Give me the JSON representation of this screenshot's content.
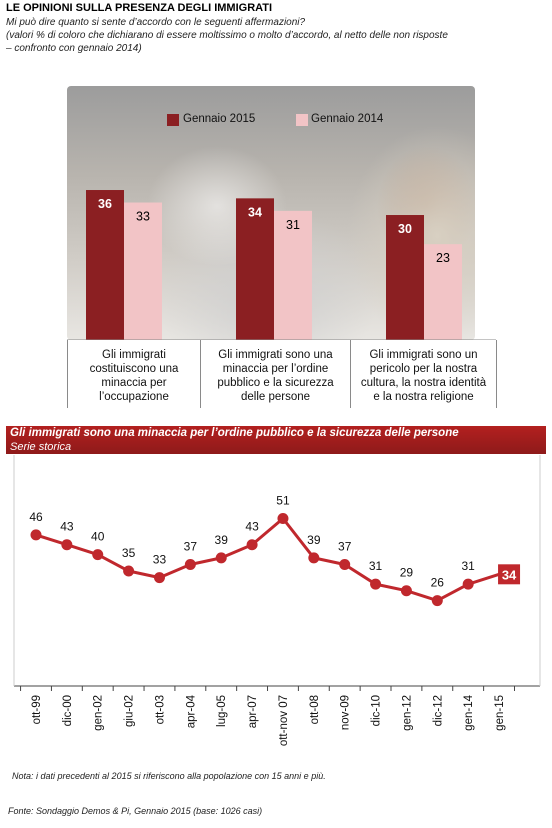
{
  "header": {
    "title": "LE OPINIONI SULLA PRESENZA DEGLI IMMIGRATI",
    "subtitle_line1": "Mi può dire quanto si sente d’accordo con le seguenti affermazioni?",
    "subtitle_line2": "(valori % di coloro che dichiarano di essere moltissimo o molto d’accordo, al netto delle non risposte",
    "subtitle_line3": "– confronto con gennaio 2014)"
  },
  "chart_data": [
    {
      "type": "bar",
      "categories": [
        "Gli immigrati costituiscono una minaccia per l’occupazione",
        "Gli immigrati sono una minaccia per l’ordine pubblico e la sicurezza delle persone",
        "Gli immigrati sono un pericolo per la nostra cultura, la nostra identità e la nostra religione"
      ],
      "category_lines": [
        [
          "Gli immigrati",
          "costituiscono una",
          "minaccia per",
          "l’occupazione"
        ],
        [
          "Gli immigrati sono una",
          "minaccia per l’ordine",
          "pubblico e la sicurezza",
          "delle persone"
        ],
        [
          "Gli immigrati sono un",
          "pericolo per la nostra",
          "cultura, la nostra identità",
          "e la nostra religione"
        ]
      ],
      "series": [
        {
          "name": "Gennaio 2015",
          "values": [
            36,
            34,
            30
          ],
          "color": "#8b1f22",
          "label_color": "#ffffff"
        },
        {
          "name": "Gennaio 2014",
          "values": [
            33,
            31,
            23
          ],
          "color": "#f2c4c6",
          "label_color": "#000000"
        }
      ],
      "legend_position": "top",
      "ylim": [
        0,
        40
      ]
    },
    {
      "type": "line",
      "title": "Gli immigrati sono una minaccia per l’ordine pubblico e la sicurezza delle persone",
      "subtitle": "Serie storica",
      "x": [
        "ott-99",
        "dic-00",
        "gen-02",
        "giu-02",
        "ott-03",
        "apr-04",
        "lug-05",
        "apr-07",
        "ott-nov 07",
        "ott-08",
        "nov-09",
        "dic-10",
        "gen-12",
        "dic-12",
        "gen-14",
        "gen-15"
      ],
      "values": [
        46,
        43,
        40,
        35,
        33,
        37,
        39,
        43,
        51,
        39,
        37,
        31,
        29,
        26,
        31,
        34
      ],
      "highlight_last": true,
      "line_color": "#c0282d",
      "ylim": [
        0,
        60
      ]
    }
  ],
  "footer": {
    "note": "Nota: i dati precedenti al 2015 si riferiscono alla popolazione con 15 anni e più.",
    "source": "Fonte: Sondaggio Demos & Pi, Gennaio 2015 (base: 1026 casi)"
  }
}
